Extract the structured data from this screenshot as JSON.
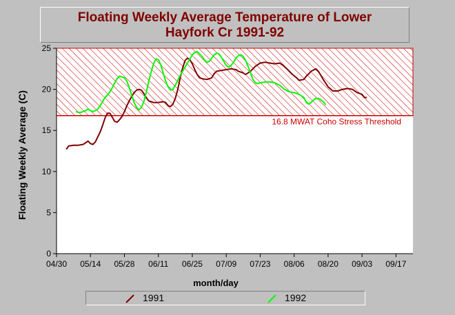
{
  "title": {
    "line1": "Floating Weekly Average Temperature of Lower",
    "line2": "Hayfork Cr 1991-92"
  },
  "chart_data": {
    "type": "line",
    "title": "Floating Weekly Average Temperature of Lower Hayfork Cr 1991-92",
    "xlabel": "month/day",
    "ylabel": "Floating Weekly Average (C)",
    "x_ticks": [
      "04/30",
      "05/14",
      "05/28",
      "06/11",
      "06/25",
      "07/09",
      "07/23",
      "08/06",
      "08/20",
      "09/03",
      "09/17"
    ],
    "x_range_days": [
      0,
      147
    ],
    "ylim": [
      0,
      25
    ],
    "y_ticks": [
      0,
      5,
      10,
      15,
      20,
      25
    ],
    "grid": false,
    "legend_position": "bottom",
    "threshold": {
      "value": 16.8,
      "label": "16.8 MWAT Coho Stress Threshold",
      "color": "#cc0000"
    },
    "series": [
      {
        "name": "1991",
        "color": "#800000",
        "points": [
          [
            4,
            12.7
          ],
          [
            5,
            13.1
          ],
          [
            7,
            13.2
          ],
          [
            9,
            13.2
          ],
          [
            11,
            13.3
          ],
          [
            12,
            13.5
          ],
          [
            13,
            13.7
          ],
          [
            14,
            13.4
          ],
          [
            15,
            13.3
          ],
          [
            16,
            13.6
          ],
          [
            17,
            14.2
          ],
          [
            18,
            14.8
          ],
          [
            19,
            15.6
          ],
          [
            20,
            16.5
          ],
          [
            21,
            17.1
          ],
          [
            22,
            17.1
          ],
          [
            23,
            16.6
          ],
          [
            24,
            16.1
          ],
          [
            25,
            16.0
          ],
          [
            26,
            16.3
          ],
          [
            27,
            16.7
          ],
          [
            28,
            17.3
          ],
          [
            29,
            18.0
          ],
          [
            30,
            18.6
          ],
          [
            31,
            19.1
          ],
          [
            32,
            19.6
          ],
          [
            33,
            19.9
          ],
          [
            34,
            20.0
          ],
          [
            35,
            19.9
          ],
          [
            36,
            19.5
          ],
          [
            37,
            19.0
          ],
          [
            38,
            18.6
          ],
          [
            39,
            18.5
          ],
          [
            40,
            18.4
          ],
          [
            42,
            18.4
          ],
          [
            44,
            18.5
          ],
          [
            45,
            18.4
          ],
          [
            46,
            18.0
          ],
          [
            47,
            17.9
          ],
          [
            48,
            18.2
          ],
          [
            49,
            18.9
          ],
          [
            50,
            20.0
          ],
          [
            51,
            21.4
          ],
          [
            52,
            22.6
          ],
          [
            53,
            23.5
          ],
          [
            54,
            23.8
          ],
          [
            55,
            23.6
          ],
          [
            56,
            23.1
          ],
          [
            57,
            22.4
          ],
          [
            58,
            21.8
          ],
          [
            59,
            21.4
          ],
          [
            60,
            21.3
          ],
          [
            62,
            21.2
          ],
          [
            64,
            21.4
          ],
          [
            65,
            21.9
          ],
          [
            66,
            22.2
          ],
          [
            68,
            22.3
          ],
          [
            70,
            22.4
          ],
          [
            72,
            22.5
          ],
          [
            74,
            22.4
          ],
          [
            75,
            22.2
          ],
          [
            77,
            22.0
          ],
          [
            78,
            21.8
          ],
          [
            80,
            22.2
          ],
          [
            82,
            22.8
          ],
          [
            84,
            23.2
          ],
          [
            86,
            23.3
          ],
          [
            88,
            23.2
          ],
          [
            90,
            23.1
          ],
          [
            92,
            23.2
          ],
          [
            93,
            23.0
          ],
          [
            95,
            22.5
          ],
          [
            97,
            21.9
          ],
          [
            99,
            21.4
          ],
          [
            100,
            21.1
          ],
          [
            102,
            21.2
          ],
          [
            103,
            21.6
          ],
          [
            105,
            22.2
          ],
          [
            107,
            22.5
          ],
          [
            108,
            22.2
          ],
          [
            110,
            21.2
          ],
          [
            112,
            20.3
          ],
          [
            114,
            19.8
          ],
          [
            116,
            19.8
          ],
          [
            118,
            20.0
          ],
          [
            120,
            20.1
          ],
          [
            122,
            20.0
          ],
          [
            124,
            19.6
          ],
          [
            126,
            19.4
          ],
          [
            127,
            19.0
          ],
          [
            128,
            19.0
          ]
        ]
      },
      {
        "name": "1992",
        "color": "#00ff00",
        "points": [
          [
            8,
            17.3
          ],
          [
            9,
            17.2
          ],
          [
            10,
            17.2
          ],
          [
            11,
            17.3
          ],
          [
            12,
            17.4
          ],
          [
            13,
            17.6
          ],
          [
            14,
            17.4
          ],
          [
            15,
            17.3
          ],
          [
            16,
            17.4
          ],
          [
            17,
            17.6
          ],
          [
            18,
            18.0
          ],
          [
            19,
            18.5
          ],
          [
            20,
            19.0
          ],
          [
            21,
            19.3
          ],
          [
            22,
            19.7
          ],
          [
            23,
            20.2
          ],
          [
            24,
            20.8
          ],
          [
            25,
            21.3
          ],
          [
            26,
            21.6
          ],
          [
            27,
            21.5
          ],
          [
            28,
            21.4
          ],
          [
            29,
            21.0
          ],
          [
            30,
            20.2
          ],
          [
            31,
            19.3
          ],
          [
            32,
            18.4
          ],
          [
            33,
            17.8
          ],
          [
            34,
            17.5
          ],
          [
            35,
            17.8
          ],
          [
            36,
            18.5
          ],
          [
            37,
            19.6
          ],
          [
            38,
            20.9
          ],
          [
            39,
            22.1
          ],
          [
            40,
            23.1
          ],
          [
            41,
            23.7
          ],
          [
            42,
            23.6
          ],
          [
            43,
            23.0
          ],
          [
            44,
            22.0
          ],
          [
            45,
            21.0
          ],
          [
            46,
            20.3
          ],
          [
            47,
            19.9
          ],
          [
            48,
            20.0
          ],
          [
            49,
            20.5
          ],
          [
            50,
            21.1
          ],
          [
            51,
            21.7
          ],
          [
            52,
            22.2
          ],
          [
            53,
            22.7
          ],
          [
            54,
            23.2
          ],
          [
            55,
            23.7
          ],
          [
            56,
            24.2
          ],
          [
            57,
            24.5
          ],
          [
            58,
            24.6
          ],
          [
            59,
            24.3
          ],
          [
            60,
            24.0
          ],
          [
            61,
            23.6
          ],
          [
            62,
            23.3
          ],
          [
            63,
            23.4
          ],
          [
            64,
            23.8
          ],
          [
            65,
            24.2
          ],
          [
            66,
            24.4
          ],
          [
            67,
            24.3
          ],
          [
            68,
            23.9
          ],
          [
            69,
            23.4
          ],
          [
            70,
            22.9
          ],
          [
            71,
            22.7
          ],
          [
            72,
            22.9
          ],
          [
            73,
            23.3
          ],
          [
            74,
            23.8
          ],
          [
            75,
            24.1
          ],
          [
            76,
            24.2
          ],
          [
            77,
            24.0
          ],
          [
            78,
            23.5
          ],
          [
            79,
            22.8
          ],
          [
            80,
            22.0
          ],
          [
            81,
            21.2
          ],
          [
            82,
            20.8
          ],
          [
            83,
            20.7
          ],
          [
            84,
            20.8
          ],
          [
            86,
            20.9
          ],
          [
            88,
            20.9
          ],
          [
            90,
            20.8
          ],
          [
            92,
            20.5
          ],
          [
            94,
            20.0
          ],
          [
            96,
            19.7
          ],
          [
            98,
            19.6
          ],
          [
            99,
            19.5
          ],
          [
            100,
            19.4
          ],
          [
            102,
            19.0
          ],
          [
            103,
            18.4
          ],
          [
            104,
            18.2
          ],
          [
            105,
            18.4
          ],
          [
            106,
            18.7
          ],
          [
            107,
            18.9
          ],
          [
            108,
            18.9
          ],
          [
            109,
            18.7
          ],
          [
            110,
            18.5
          ],
          [
            111,
            18.1
          ]
        ]
      }
    ]
  }
}
